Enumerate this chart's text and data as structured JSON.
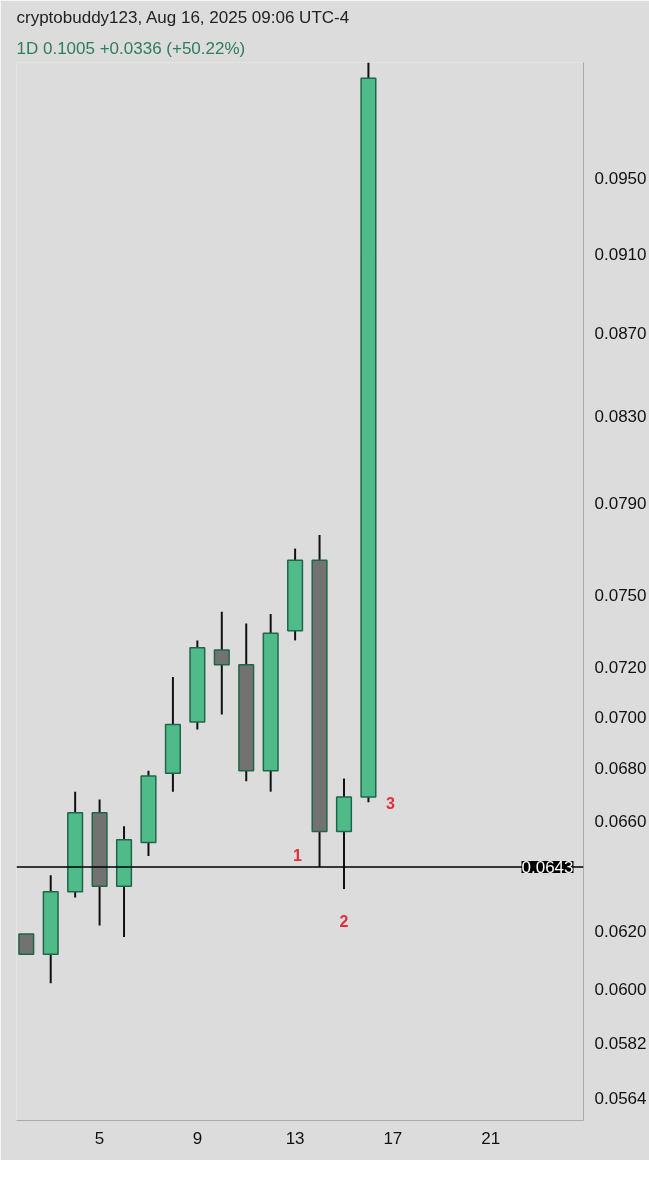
{
  "chart_data": {
    "type": "candlestick",
    "title": "cryptobuddy123, Aug 16, 2025 09:06 UTC-4",
    "subtitle": "1D   0.1005  +0.0336 (+50.22%)",
    "x": [
      2,
      3,
      4,
      5,
      6,
      7,
      8,
      9,
      10,
      11,
      12,
      13,
      14,
      15,
      16
    ],
    "ohlc": [
      [
        0.0619,
        0.0619,
        0.0612,
        0.0612
      ],
      [
        0.0612,
        0.064,
        0.0602,
        0.0634
      ],
      [
        0.0634,
        0.0671,
        0.0632,
        0.0663
      ],
      [
        0.0663,
        0.0668,
        0.0622,
        0.0636
      ],
      [
        0.0636,
        0.0658,
        0.0618,
        0.0653
      ],
      [
        0.0652,
        0.0679,
        0.0647,
        0.0677
      ],
      [
        0.0678,
        0.0716,
        0.0671,
        0.0697
      ],
      [
        0.0698,
        0.0731,
        0.0695,
        0.0728
      ],
      [
        0.0727,
        0.0743,
        0.0701,
        0.0721
      ],
      [
        0.0721,
        0.0738,
        0.0675,
        0.0679
      ],
      [
        0.0679,
        0.0742,
        0.0671,
        0.0734
      ],
      [
        0.0735,
        0.077,
        0.0731,
        0.0765
      ],
      [
        0.0765,
        0.0776,
        0.0643,
        0.0656
      ],
      [
        0.0656,
        0.0676,
        0.0635,
        0.0669
      ],
      [
        0.0669,
        0.1014,
        0.0667,
        0.1005
      ]
    ],
    "colors": [
      "#727272",
      "#50bb8a",
      "#50bb8a",
      "#727272",
      "#50bb8a",
      "#50bb8a",
      "#50bb8a",
      "#50bb8a",
      "#727272",
      "#727272",
      "#50bb8a",
      "#50bb8a",
      "#727272",
      "#50bb8a",
      "#50bb8a"
    ],
    "log": true,
    "xlim": [
      1.6,
      24.8
    ],
    "xticks": [
      5,
      9,
      13,
      17,
      21
    ],
    "ylim": [
      0.0557,
      0.1014
    ],
    "yticks": [
      {
        "value": 0.0564,
        "label": "0.0564"
      },
      {
        "value": 0.0582,
        "label": "0.0582"
      },
      {
        "value": 0.06,
        "label": "0.0600"
      },
      {
        "value": 0.062,
        "label": "0.0620"
      },
      {
        "value": 0.066,
        "label": "0.0660"
      },
      {
        "value": 0.068,
        "label": "0.0680"
      },
      {
        "value": 0.07,
        "label": "0.0700"
      },
      {
        "value": 0.072,
        "label": "0.0720"
      },
      {
        "value": 0.075,
        "label": "0.0750"
      },
      {
        "value": 0.079,
        "label": "0.0790"
      },
      {
        "value": 0.083,
        "label": "0.0830"
      },
      {
        "value": 0.087,
        "label": "0.0870"
      },
      {
        "value": 0.091,
        "label": "0.0910"
      },
      {
        "value": 0.095,
        "label": "0.0950"
      }
    ],
    "ref_lines": [
      {
        "axis": "y",
        "value": 0.0643,
        "label": "0.0643",
        "color": "#000000"
      }
    ],
    "annotations": [
      {
        "text": "1",
        "x": 14,
        "y": 0.0643
      },
      {
        "text": "2",
        "x": 15,
        "y": 0.0635
      },
      {
        "text": "3",
        "x": 16,
        "y": 0.0669
      }
    ]
  }
}
